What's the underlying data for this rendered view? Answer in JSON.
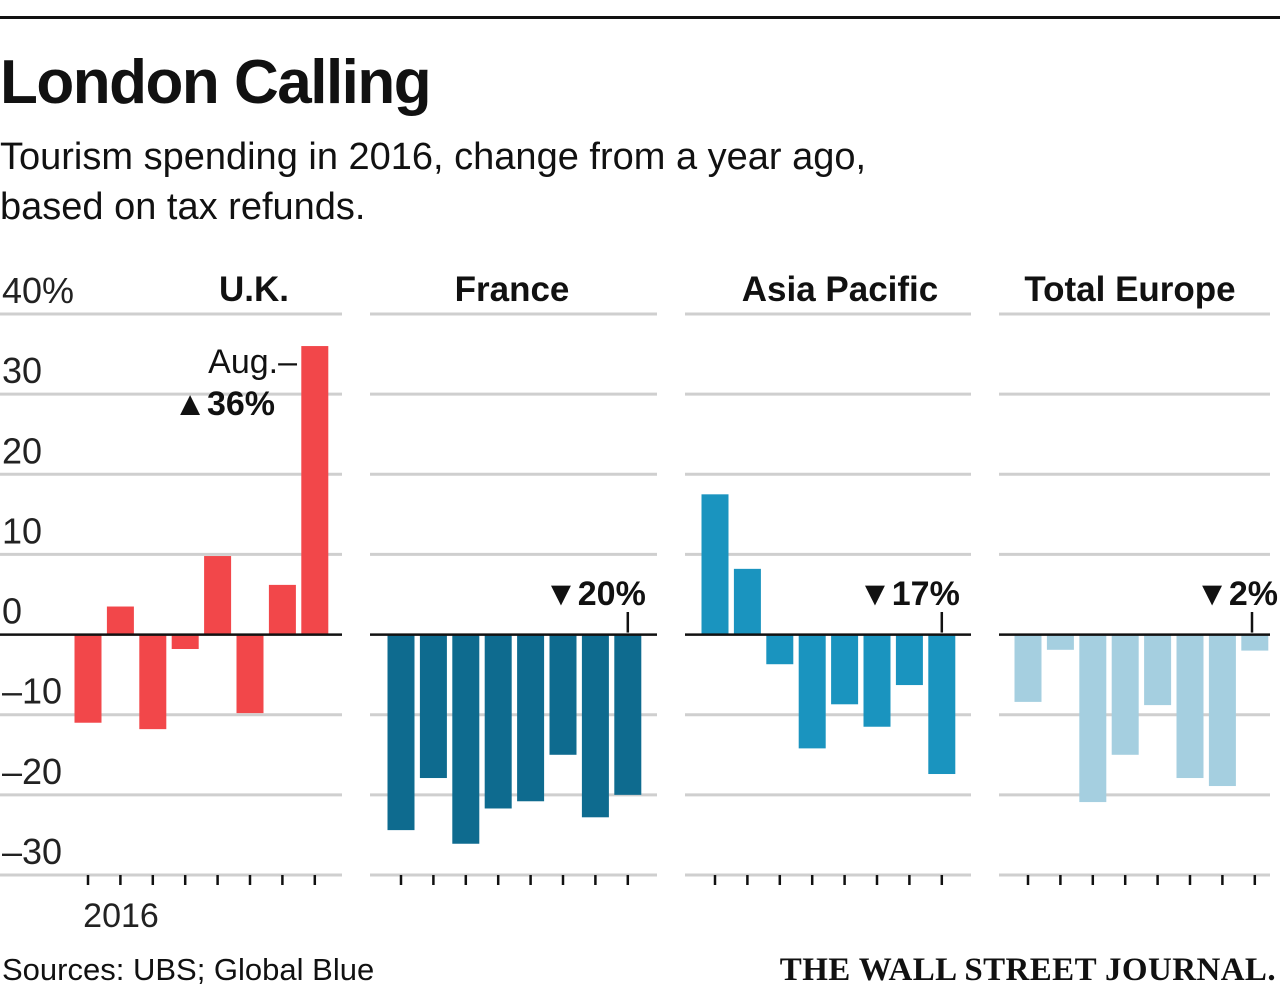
{
  "title": "London Calling",
  "subtitle": "Tourism spending in 2016, change from a year ago, based on tax refunds.",
  "source": "Sources: UBS; Global Blue",
  "publisher": "THE WALL STREET JOURNAL.",
  "chart_data": {
    "type": "bar",
    "yaxis": {
      "ylim": [
        -30,
        40
      ],
      "ticks": [
        40,
        30,
        20,
        10,
        0,
        -10,
        -20,
        -30
      ],
      "tick_labels": [
        "40%",
        "30",
        "20",
        "10",
        "0",
        "-10",
        "-20",
        "-30"
      ]
    },
    "xaxis": {
      "label": "2016"
    },
    "grid": true,
    "panels": [
      {
        "name": "U.K.",
        "color": "#f2474a",
        "values": [
          -11,
          3.5,
          -11.8,
          -1.8,
          9.8,
          -9.8,
          6.2,
          36
        ],
        "annotation": {
          "line1": "Aug.–",
          "arrow": "▲",
          "value": "36%"
        }
      },
      {
        "name": "France",
        "color": "#0e6b8f",
        "values": [
          -24.4,
          -17.9,
          -26.1,
          -21.7,
          -20.8,
          -15,
          -22.8,
          -20
        ],
        "annotation": {
          "arrow": "▼",
          "value": "20%"
        }
      },
      {
        "name": "Asia Pacific",
        "color": "#1a94bf",
        "values": [
          17.5,
          8.2,
          -3.7,
          -14.2,
          -8.7,
          -11.5,
          -6.3,
          -17.4
        ],
        "annotation": {
          "arrow": "▼",
          "value": "17%"
        }
      },
      {
        "name": "Total Europe",
        "color": "#a5cfe0",
        "values": [
          -8.4,
          -1.9,
          -20.9,
          -15,
          -8.8,
          -17.9,
          -18.9,
          -2
        ],
        "annotation": {
          "arrow": "▼",
          "value": "2%"
        }
      }
    ]
  }
}
